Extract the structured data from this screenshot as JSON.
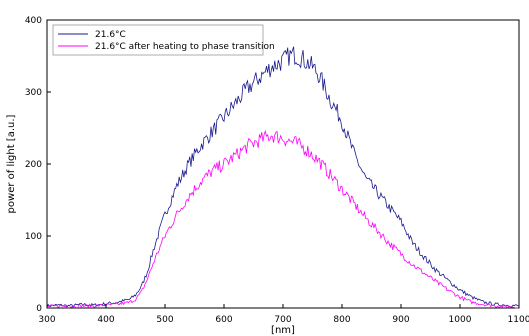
{
  "chart_data": {
    "type": "line",
    "title": "",
    "xlabel": "[nm]",
    "ylabel": "power of light [a.u.]",
    "xlim": [
      300,
      1100
    ],
    "ylim": [
      0,
      400
    ],
    "x_ticks": [
      300,
      400,
      500,
      600,
      700,
      800,
      900,
      1000,
      1100
    ],
    "y_ticks": [
      0,
      100,
      200,
      300,
      400
    ],
    "x_tick_labels": [
      "300",
      "400",
      "500",
      "600",
      "700",
      "800",
      "900",
      "1000",
      "1100"
    ],
    "y_tick_labels": [
      "0",
      "100",
      "200",
      "300",
      "400"
    ],
    "grid": false,
    "legend_position": "top-left",
    "series": [
      {
        "name": "21.6°C",
        "color": "#1a1a8c",
        "x": [
          300,
          320,
          340,
          360,
          380,
          400,
          420,
          440,
          450,
          460,
          470,
          480,
          490,
          500,
          520,
          540,
          560,
          580,
          600,
          620,
          640,
          660,
          680,
          700,
          710,
          720,
          730,
          740,
          750,
          760,
          780,
          800,
          820,
          840,
          860,
          880,
          900,
          920,
          940,
          960,
          980,
          1000,
          1020,
          1040,
          1060,
          1080,
          1100
        ],
        "y": [
          3,
          4,
          3,
          5,
          4,
          6,
          8,
          12,
          18,
          30,
          50,
          80,
          105,
          130,
          170,
          200,
          225,
          245,
          265,
          285,
          305,
          320,
          335,
          343,
          350,
          352,
          348,
          342,
          335,
          325,
          290,
          260,
          215,
          180,
          160,
          140,
          120,
          90,
          70,
          52,
          38,
          25,
          15,
          8,
          5,
          4,
          3
        ]
      },
      {
        "name": "21.6°C  after heating to phase transition",
        "color": "#ff00ff",
        "x": [
          300,
          320,
          340,
          360,
          380,
          400,
          420,
          440,
          450,
          460,
          470,
          480,
          490,
          500,
          520,
          540,
          560,
          580,
          600,
          620,
          640,
          660,
          680,
          700,
          710,
          720,
          740,
          760,
          780,
          800,
          820,
          840,
          860,
          880,
          900,
          920,
          940,
          960,
          980,
          1000,
          1020,
          1040,
          1060,
          1080,
          1100
        ],
        "y": [
          2,
          3,
          2,
          3,
          3,
          4,
          5,
          8,
          12,
          22,
          40,
          62,
          82,
          100,
          130,
          155,
          175,
          190,
          200,
          212,
          225,
          233,
          240,
          236,
          232,
          230,
          220,
          205,
          185,
          165,
          145,
          125,
          108,
          90,
          75,
          60,
          48,
          36,
          25,
          15,
          8,
          5,
          3,
          2,
          1
        ]
      }
    ]
  }
}
